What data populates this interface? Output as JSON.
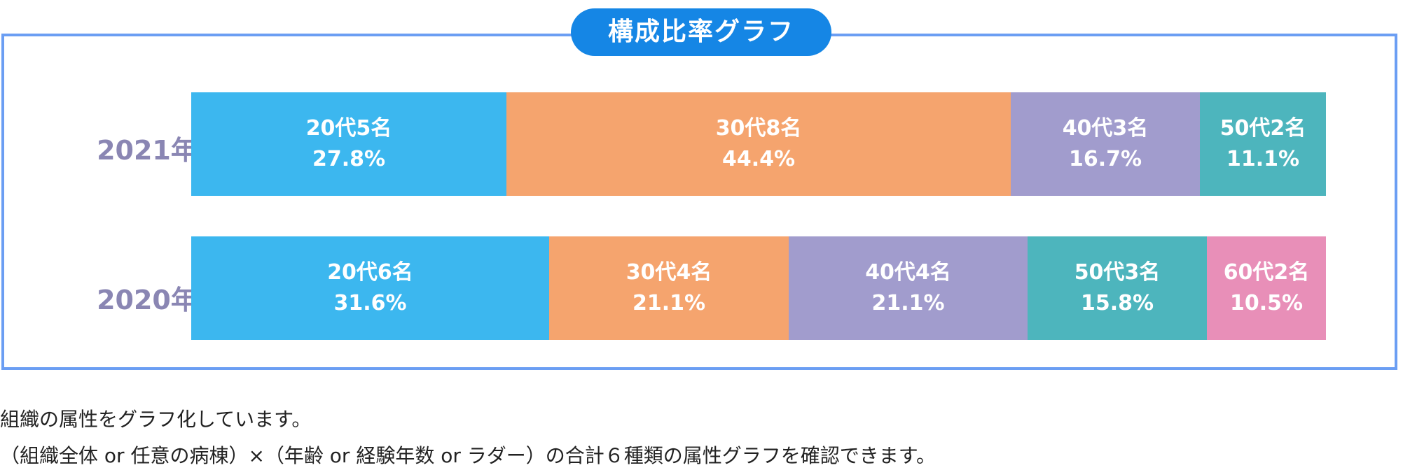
{
  "title": "構成比率グラフ",
  "colors": {
    "20s": "#3cb7ef",
    "30s": "#f5a46e",
    "40s": "#a19ccd",
    "50s": "#4db5bd",
    "60s": "#e88fb8",
    "badge": "#1586e5",
    "frame": "#6b9ef3",
    "row_label": "#8a86b3"
  },
  "chart_data": {
    "type": "bar",
    "orientation": "horizontal-stacked-100",
    "title": "構成比率グラフ",
    "categories": [
      "2021年",
      "2020年"
    ],
    "rows": [
      {
        "label": "2021年",
        "segments": [
          {
            "label": "20代5名",
            "pct_label": "27.8%",
            "value": 27.8,
            "color": "#3cb7ef"
          },
          {
            "label": "30代8名",
            "pct_label": "44.4%",
            "value": 44.4,
            "color": "#f5a46e"
          },
          {
            "label": "40代3名",
            "pct_label": "16.7%",
            "value": 16.7,
            "color": "#a19ccd"
          },
          {
            "label": "50代2名",
            "pct_label": "11.1%",
            "value": 11.1,
            "color": "#4db5bd"
          }
        ]
      },
      {
        "label": "2020年",
        "segments": [
          {
            "label": "20代6名",
            "pct_label": "31.6%",
            "value": 31.6,
            "color": "#3cb7ef"
          },
          {
            "label": "30代4名",
            "pct_label": "21.1%",
            "value": 21.1,
            "color": "#f5a46e"
          },
          {
            "label": "40代4名",
            "pct_label": "21.1%",
            "value": 21.1,
            "color": "#a19ccd"
          },
          {
            "label": "50代3名",
            "pct_label": "15.8%",
            "value": 15.8,
            "color": "#4db5bd"
          },
          {
            "label": "60代2名",
            "pct_label": "10.5%",
            "value": 10.5,
            "color": "#e88fb8"
          }
        ]
      }
    ],
    "xlim": [
      0,
      100
    ],
    "grid": false
  },
  "notes": [
    "組織の属性をグラフ化しています。",
    "（組織全体 or 任意の病棟）×（年齢 or 経験年数 or ラダー）の合計６種類の属性グラフを確認できます。"
  ]
}
